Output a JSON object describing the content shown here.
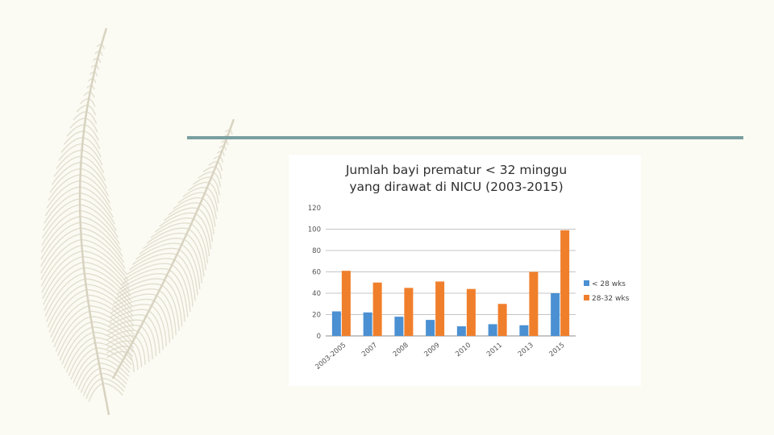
{
  "colors": {
    "background": "#fbfaf3",
    "feather": "#d8d3c0",
    "rule": "#7a9fa0",
    "series_1": "#4a90d2",
    "series_2": "#f07f2c",
    "grid": "#8c8c8c"
  },
  "chart_data": {
    "type": "bar",
    "title_lines": [
      "Jumlah bayi prematur < 32 minggu",
      "yang dirawat di NICU (2003-2015)"
    ],
    "categories": [
      "2003-2005",
      "2007",
      "2008",
      "2009",
      "2010",
      "2011",
      "2013",
      "2015"
    ],
    "series": [
      {
        "name": "< 28 wks",
        "color": "#4a90d2",
        "values": [
          23,
          22,
          18,
          15,
          9,
          11,
          10,
          40
        ]
      },
      {
        "name": "28-32 wks",
        "color": "#f07f2c",
        "values": [
          61,
          50,
          45,
          51,
          44,
          30,
          60,
          99
        ]
      }
    ],
    "ylim": [
      0,
      120
    ],
    "yticks": [
      0,
      20,
      40,
      60,
      80,
      100,
      120
    ],
    "grid": true,
    "legend_position": "right"
  }
}
